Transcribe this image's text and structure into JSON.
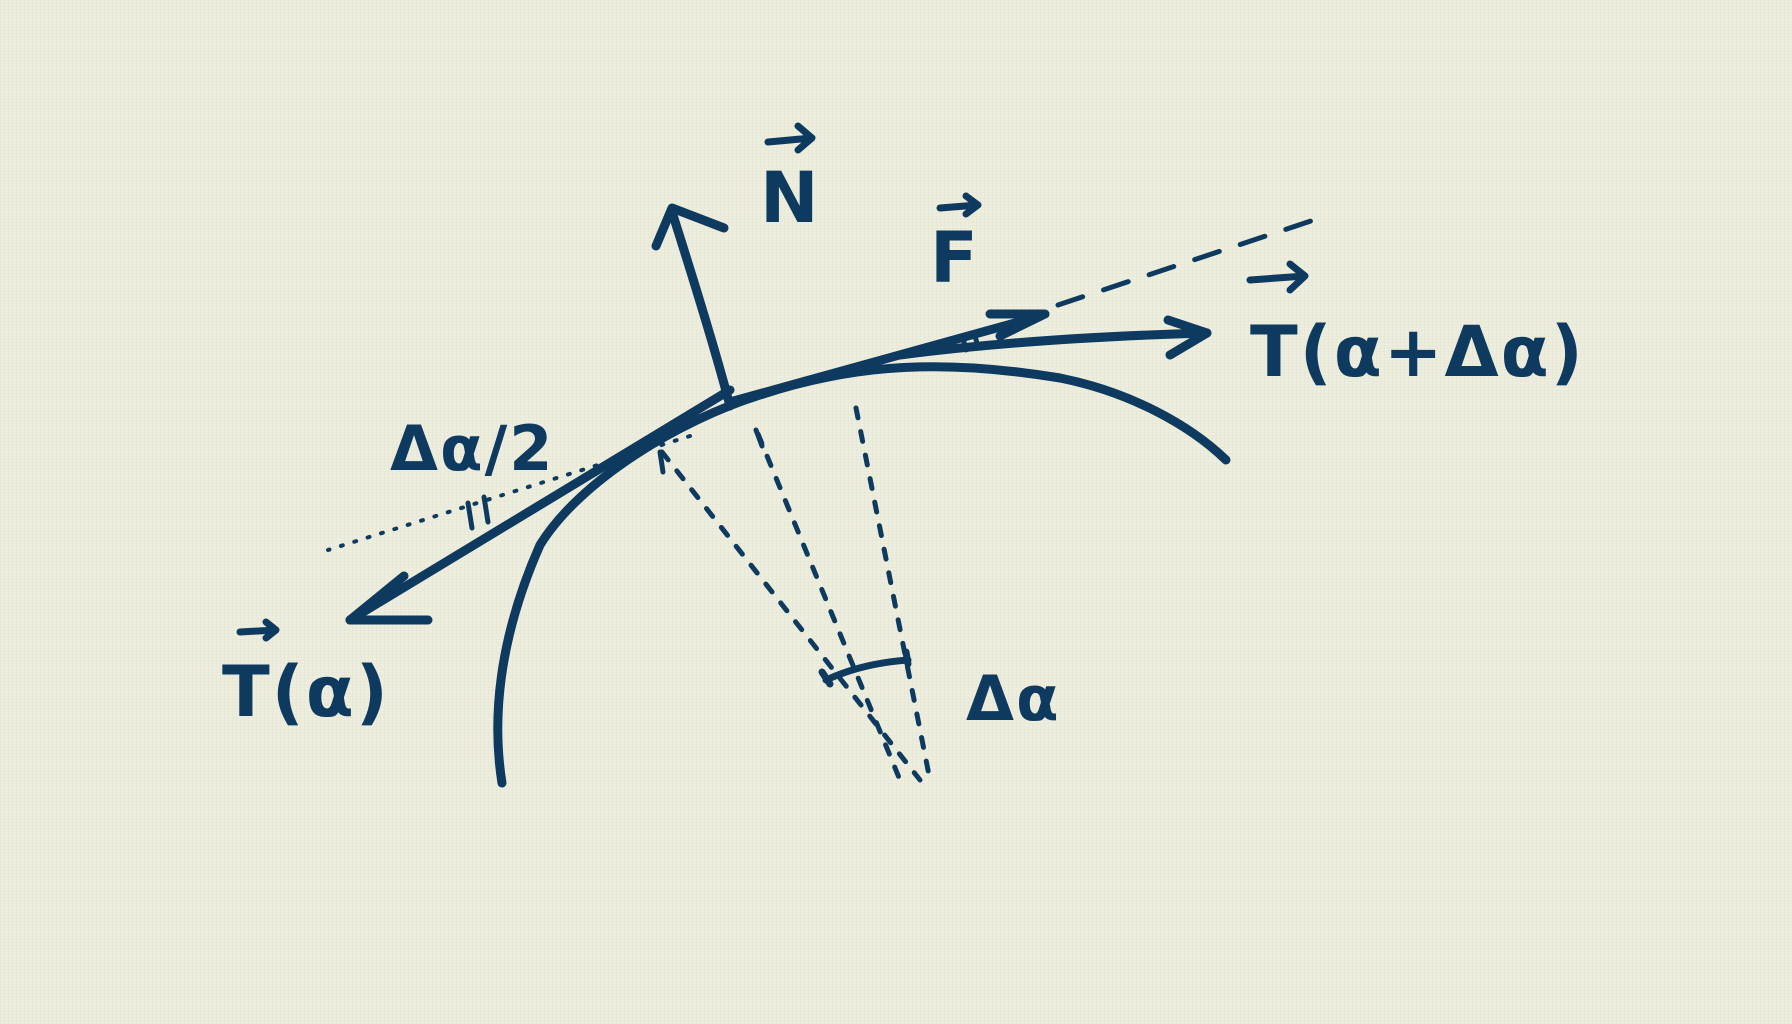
{
  "labels": {
    "normal_force": "N",
    "force": "F",
    "tension_left": "T(α)",
    "tension_right": "T(α+Δα)",
    "half_angle": "Δα/2",
    "angle": "Δα"
  },
  "colors": {
    "ink": "#0d3a5e",
    "paper": "#eeeedf"
  }
}
